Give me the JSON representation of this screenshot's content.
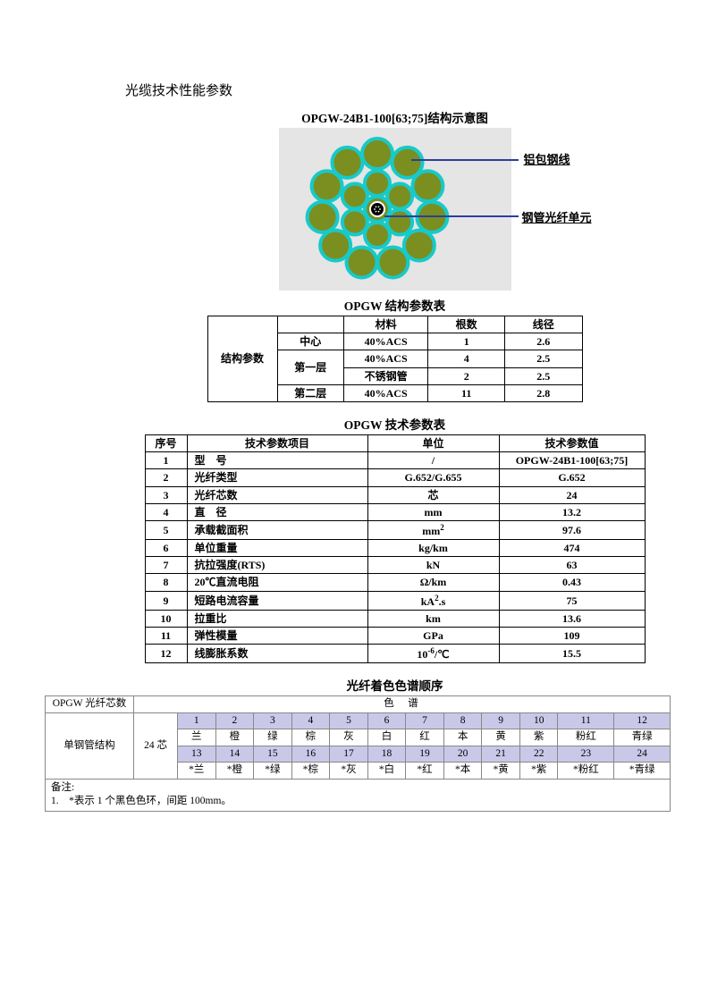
{
  "page_title": "光缆技术性能参数",
  "diagram": {
    "title": "OPGW-24B1-100[63;75]结构示意图",
    "callout_top": "铝包钢线",
    "callout_bottom": "钢管光纤单元",
    "bg_color": "#e5e5e5",
    "outer_fill": "#7a8f1f",
    "outer_stroke": "#18c9c9",
    "outer_stroke_width": 4,
    "center_fill": "#000",
    "center_stroke": "#fff",
    "inner_radius": 14,
    "outer_radius": 17,
    "outer_count": 11,
    "inner_count": 6,
    "inner_ring_r": 29,
    "outer_ring_r": 62
  },
  "struct_table": {
    "title": "OPGW 结构参数表",
    "row_header": "结构参数",
    "headers": [
      "材料",
      "根数",
      "线径"
    ],
    "layers": [
      "中心",
      "第一层",
      "第二层"
    ],
    "rows": [
      {
        "layer_idx": 0,
        "material": "40%ACS",
        "count": "1",
        "dia": "2.6"
      },
      {
        "layer_idx": 1,
        "material": "40%ACS",
        "count": "4",
        "dia": "2.5"
      },
      {
        "layer_idx": 1,
        "material": "不锈钢管",
        "count": "2",
        "dia": "2.5"
      },
      {
        "layer_idx": 2,
        "material": "40%ACS",
        "count": "11",
        "dia": "2.8"
      }
    ]
  },
  "tech_table": {
    "title": "OPGW 技术参数表",
    "headers": [
      "序号",
      "技术参数项目",
      "单位",
      "技术参数值"
    ],
    "rows": [
      {
        "n": "1",
        "item": "型　号",
        "unit": "/",
        "val": "OPGW-24B1-100[63;75]"
      },
      {
        "n": "2",
        "item": "光纤类型",
        "unit": "G.652/G.655",
        "val": "G.652"
      },
      {
        "n": "3",
        "item": "光纤芯数",
        "unit": "芯",
        "val": "24"
      },
      {
        "n": "4",
        "item": "直　径",
        "unit": "mm",
        "val": "13.2"
      },
      {
        "n": "5",
        "item": "承载截面积",
        "unit_html": "mm<sup>2</sup>",
        "val": "97.6"
      },
      {
        "n": "6",
        "item": "单位重量",
        "unit": "kg/km",
        "val": "474"
      },
      {
        "n": "7",
        "item": "抗拉强度(RTS)",
        "unit": "kN",
        "val": "63"
      },
      {
        "n": "8",
        "item": "20℃直流电阻",
        "unit": "Ω/km",
        "val": "0.43"
      },
      {
        "n": "9",
        "item": "短路电流容量",
        "unit_html": "kA<sup>2</sup>.s",
        "val": "75"
      },
      {
        "n": "10",
        "item": "拉重比",
        "unit": "km",
        "val": "13.6"
      },
      {
        "n": "11",
        "item": "弹性模量",
        "unit": "GPa",
        "val": "109"
      },
      {
        "n": "12",
        "item": "线膨胀系数",
        "unit_html": "10<sup>-6</sup>/℃",
        "val": "15.5"
      }
    ]
  },
  "color_table": {
    "title": "光纤着色色谱顺序",
    "left1": "OPGW 光纤芯数",
    "left2": "单钢管结构",
    "left3": "24 芯",
    "span_header": "色　谱",
    "nums1": [
      "1",
      "2",
      "3",
      "4",
      "5",
      "6",
      "7",
      "8",
      "9",
      "10",
      "11",
      "12"
    ],
    "row1": [
      "兰",
      "橙",
      "绿",
      "棕",
      "灰",
      "白",
      "红",
      "本",
      "黄",
      "紫",
      "粉红",
      "青绿"
    ],
    "nums2": [
      "13",
      "14",
      "15",
      "16",
      "17",
      "18",
      "19",
      "20",
      "21",
      "22",
      "23",
      "24"
    ],
    "row2": [
      "*兰",
      "*橙",
      "*绿",
      "*棕",
      "*灰",
      "*白",
      "*红",
      "*本",
      "*黄",
      "*紫",
      "*粉红",
      "*青绿"
    ],
    "footer1": "备注:",
    "footer2": "1.　*表示 1 个黑色色环，间距 100mm。"
  }
}
